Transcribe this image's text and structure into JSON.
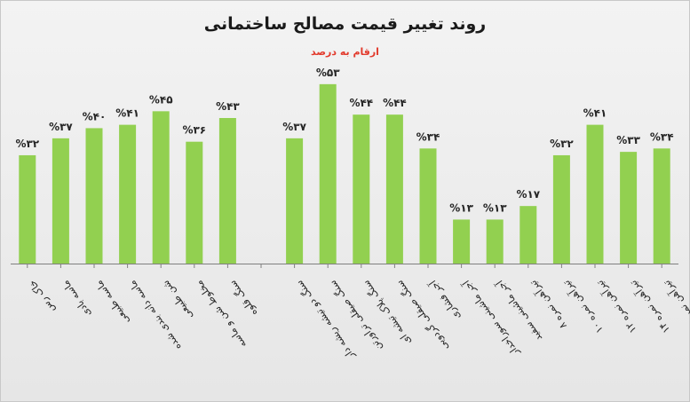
{
  "chart_data": {
    "type": "bar",
    "title": "روند  تغییر قیمت مصالح ساختمانی",
    "subtitle": "ارقام به درصد",
    "categories": [
      "خاک رس",
      "ماسه بادی",
      "ماسه طبیعی",
      "ماسه دانه بندی شده",
      "شن طبیعی",
      "مخلوط شن و ماسه",
      "سنگ قلوه",
      "",
      "سنگ دو تیشه ریشه دار",
      "سنگ صیقلی تراورتن",
      "سنگ پلاک تیشه ای",
      "سنگ صیقلی گردویی",
      "آجر فشاری",
      "آجر ماشینی سوراخدار",
      "آجر ماشینی سفید",
      "تیرآهن نمره ۸",
      "تیرآهن نمره ۱۰",
      "تیرآهن نمره ۱۲",
      "تیرآهن نمره ۱۴",
      "تیرآهن نمره ۱۶"
    ],
    "values": [
      32,
      37,
      40,
      41,
      45,
      36,
      43,
      null,
      37,
      53,
      44,
      44,
      34,
      13,
      13,
      17,
      32,
      41,
      33,
      34
    ],
    "data_labels": [
      "%۳۲",
      "%۳۷",
      "%۴۰",
      "%۴۱",
      "%۴۵",
      "%۳۶",
      "%۴۳",
      "",
      "%۳۷",
      "%۵۳",
      "%۴۴",
      "%۴۴",
      "%۳۴",
      "%۱۳",
      "%۱۳",
      "%۱۷",
      "%۳۲",
      "%۴۱",
      "%۳۳",
      "%۳۴"
    ],
    "ylim": [
      0,
      70
    ],
    "grid": false,
    "legend": "none",
    "colors": {
      "bar": "#92d050",
      "axis": "#808080",
      "label": "#262626"
    }
  }
}
